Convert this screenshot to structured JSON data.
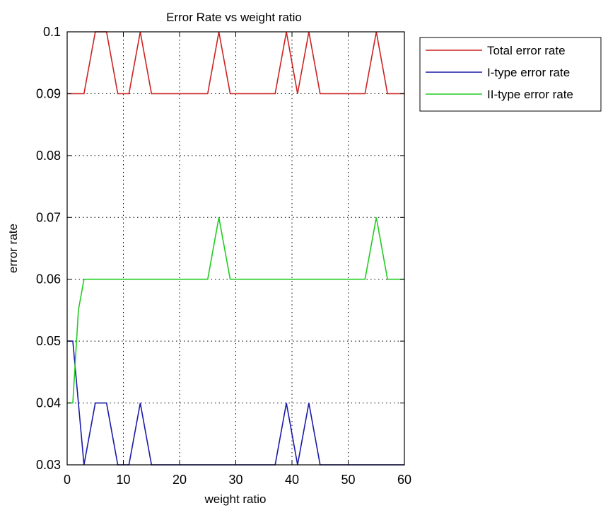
{
  "chart_data": {
    "type": "line",
    "title": "Error Rate vs weight ratio",
    "xlabel": "weight ratio",
    "ylabel": "error rate",
    "xlim": [
      0,
      60
    ],
    "ylim": [
      0.03,
      0.1
    ],
    "xticks": [
      "0",
      "10",
      "20",
      "30",
      "40",
      "50",
      "60"
    ],
    "yticks": [
      "0.03",
      "0.04",
      "0.05",
      "0.06",
      "0.07",
      "0.08",
      "0.09",
      "0.1"
    ],
    "grid": true,
    "legend_position": "outside-top-right",
    "series": [
      {
        "name": "Total error rate",
        "color": "#cc2222",
        "points": [
          [
            0,
            0.09
          ],
          [
            3,
            0.09
          ],
          [
            5,
            0.1
          ],
          [
            7,
            0.1
          ],
          [
            9,
            0.09
          ],
          [
            11,
            0.09
          ],
          [
            13,
            0.1
          ],
          [
            15,
            0.09
          ],
          [
            25,
            0.09
          ],
          [
            27,
            0.1
          ],
          [
            29,
            0.09
          ],
          [
            37,
            0.09
          ],
          [
            39,
            0.1
          ],
          [
            41,
            0.09
          ],
          [
            43,
            0.1
          ],
          [
            45,
            0.09
          ],
          [
            53,
            0.09
          ],
          [
            55,
            0.1
          ],
          [
            57,
            0.09
          ],
          [
            60,
            0.09
          ]
        ]
      },
      {
        "name": "I-type error rate",
        "color": "#1a1aa8",
        "points": [
          [
            0,
            0.05
          ],
          [
            1,
            0.05
          ],
          [
            3,
            0.03
          ],
          [
            5,
            0.04
          ],
          [
            7,
            0.04
          ],
          [
            9,
            0.03
          ],
          [
            11,
            0.03
          ],
          [
            13,
            0.04
          ],
          [
            15,
            0.03
          ],
          [
            37,
            0.03
          ],
          [
            39,
            0.04
          ],
          [
            41,
            0.03
          ],
          [
            43,
            0.04
          ],
          [
            45,
            0.03
          ],
          [
            60,
            0.03
          ]
        ]
      },
      {
        "name": "II-type error rate",
        "color": "#22cc22",
        "points": [
          [
            0,
            0.04
          ],
          [
            1,
            0.04
          ],
          [
            2,
            0.055
          ],
          [
            3,
            0.06
          ],
          [
            25,
            0.06
          ],
          [
            27,
            0.07
          ],
          [
            29,
            0.06
          ],
          [
            53,
            0.06
          ],
          [
            55,
            0.07
          ],
          [
            57,
            0.06
          ],
          [
            60,
            0.06
          ]
        ]
      }
    ]
  }
}
